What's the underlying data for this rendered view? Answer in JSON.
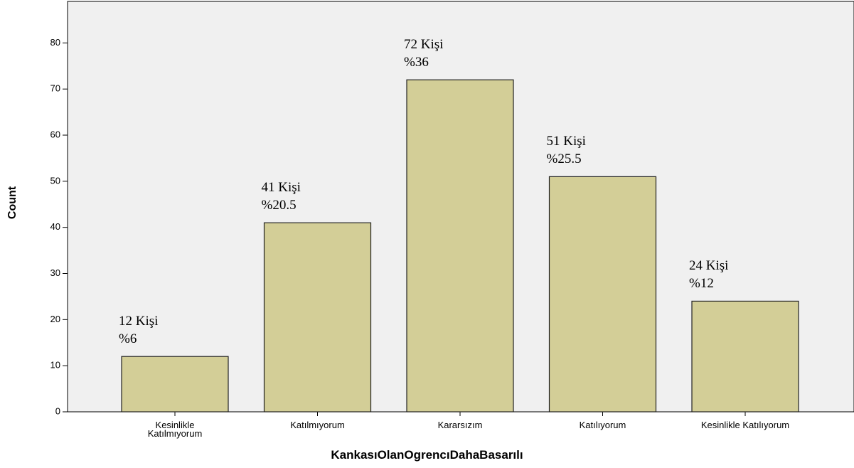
{
  "chart_data": {
    "type": "bar",
    "x_label": "KankasıOlanOgrencıDahaBasarılı",
    "y_label": "Count",
    "categories": [
      "Kesinlikle\nKatılmıyorum",
      "Katılmıyorum",
      "Kararsızım",
      "Katılıyorum",
      "Kesinlikle Katılıyorum"
    ],
    "values": [
      12,
      41,
      72,
      51,
      24
    ],
    "value_labels": [
      "12 Kişi\n%6",
      "41 Kişi\n%20.5",
      "72 Kişi\n%36",
      "51 Kişi\n%25.5",
      "24 Kişi\n%12"
    ],
    "color": "#d3ce97",
    "ylim": [
      0,
      89
    ],
    "yticks": [
      0,
      10,
      20,
      30,
      40,
      50,
      60,
      70,
      80
    ]
  }
}
